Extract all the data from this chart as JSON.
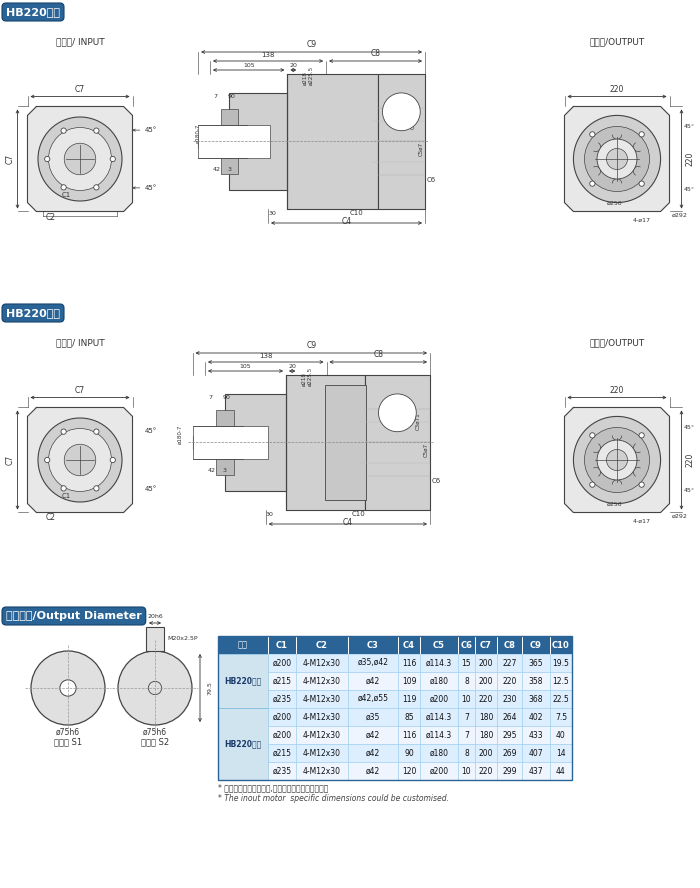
{
  "title": "HB220单段",
  "title2": "HB220双段",
  "title3": "输出轴径/Output Diameter",
  "label_input": "输入端/ INPUT",
  "label_output": "输出端/OUTPUT",
  "header_color": "#2a6496",
  "table_header": [
    "尺寸",
    "C1",
    "C2",
    "C3",
    "C4",
    "C5",
    "C6",
    "C7",
    "C8",
    "C9",
    "C10"
  ],
  "table_data": [
    [
      "ø200",
      "4-M12x30",
      "ø35,ø42",
      "116",
      "ø114.3",
      "15",
      "200",
      "227",
      "365",
      "19.5"
    ],
    [
      "ø215",
      "4-M12x30",
      "ø42",
      "109",
      "ø180",
      "8",
      "200",
      "220",
      "358",
      "12.5"
    ],
    [
      "ø235",
      "4-M12x30",
      "ø42,ø55",
      "119",
      "ø200",
      "10",
      "220",
      "230",
      "368",
      "22.5"
    ],
    [
      "ø200",
      "4-M12x30",
      "ø35",
      "85",
      "ø114.3",
      "7",
      "180",
      "264",
      "402",
      "7.5"
    ],
    [
      "ø200",
      "4-M12x30",
      "ø42",
      "116",
      "ø114.3",
      "7",
      "180",
      "295",
      "433",
      "40"
    ],
    [
      "ø215",
      "4-M12x30",
      "ø42",
      "90",
      "ø180",
      "8",
      "200",
      "269",
      "407",
      "14"
    ],
    [
      "ø235",
      "4-M12x30",
      "ø42",
      "120",
      "ø200",
      "10",
      "220",
      "299",
      "437",
      "44"
    ]
  ],
  "group_labels": [
    "HB220单段",
    "HB220双段"
  ],
  "group_sizes": [
    3,
    4
  ],
  "footer1": "* 输入马达连接板之尺寸,可根据客户要求单独定做。",
  "footer2": "* The inout motor  specific dimensions could be customised.",
  "shaft_label1": "轴型式 S1",
  "shaft_label2": "轴型式 S2"
}
